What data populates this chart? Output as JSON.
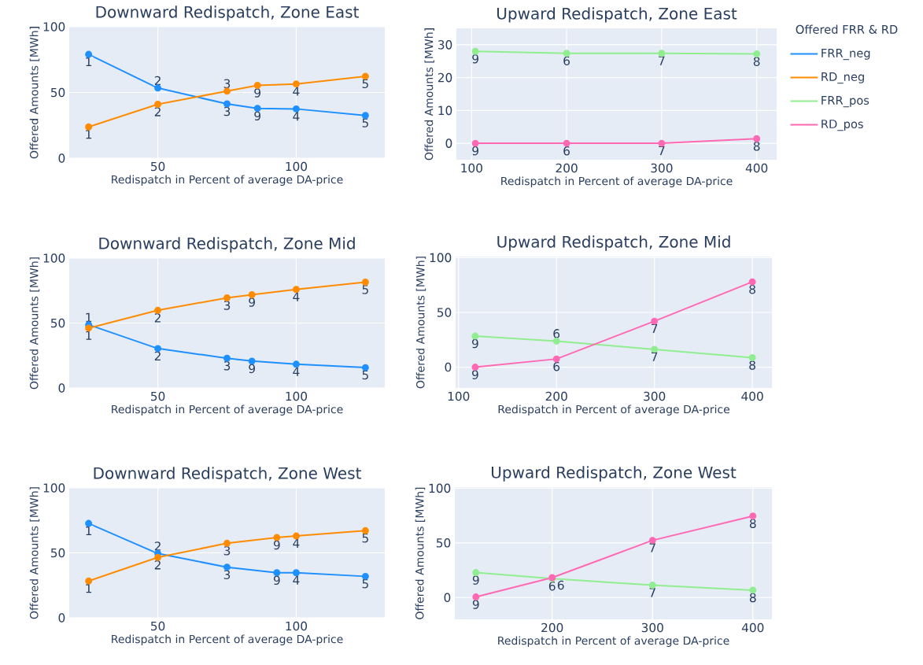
{
  "chart_data": [
    {
      "type": "line",
      "title": "Downward Redispatch, Zone East",
      "xlabel": "Redispatch in Percent of average DA-price",
      "ylabel": "Offered Amounts [MWh]",
      "xlim": [
        18,
        132
      ],
      "ylim": [
        0,
        100
      ],
      "xticks": [
        50,
        100
      ],
      "yticks": [
        0,
        50,
        100
      ],
      "grid": true,
      "marker": "circle",
      "x": [
        25,
        50,
        75,
        86,
        100,
        125
      ],
      "series": [
        {
          "name": "FRR_neg",
          "color": "#1e90ff",
          "values": [
            79,
            53.4,
            41.3,
            37.9,
            37.5,
            32.5
          ]
        },
        {
          "name": "RD_neg",
          "color": "#ff8c00",
          "values": [
            23.8,
            41,
            51,
            55.4,
            56.5,
            62.3
          ]
        }
      ],
      "annotations": [
        {
          "text": "1",
          "x": 25,
          "y": 79
        },
        {
          "text": "2",
          "x": 50,
          "y": 53.4
        },
        {
          "text": "3",
          "x": 75,
          "y": 41.3
        },
        {
          "text": "9",
          "x": 86,
          "y": 37.9
        },
        {
          "text": "4",
          "x": 100,
          "y": 37.5
        },
        {
          "text": "5",
          "x": 125,
          "y": 32.5
        },
        {
          "text": "1",
          "x": 25,
          "y": 23.8
        },
        {
          "text": "2",
          "x": 50,
          "y": 41
        },
        {
          "text": "3",
          "x": 75,
          "y": 51
        },
        {
          "text": "9",
          "x": 86,
          "y": 55.4
        },
        {
          "text": "4",
          "x": 100,
          "y": 56.5
        },
        {
          "text": "5",
          "x": 125,
          "y": 62.3
        }
      ]
    },
    {
      "type": "line",
      "title": "Upward Redispatch, Zone East",
      "xlabel": "Redispatch in Percent of average DA-price",
      "ylabel": "Offered Amounts [MWh]",
      "xlim": [
        84,
        421
      ],
      "ylim": [
        -5,
        35
      ],
      "xticks": [
        100,
        200,
        300,
        400
      ],
      "yticks": [
        0,
        10,
        20,
        30
      ],
      "grid": true,
      "marker": "circle",
      "legend": "right",
      "legend_title": "Offered FRR & RD",
      "x": [
        104,
        200,
        300,
        400
      ],
      "series": [
        {
          "name": "FRR_pos",
          "color": "#90ee90",
          "values": [
            28.0,
            27.4,
            27.4,
            27.2
          ]
        },
        {
          "name": "RD_pos",
          "color": "#ff69b4",
          "values": [
            0,
            0,
            0,
            1.4
          ]
        }
      ],
      "annotations": [
        {
          "text": "9",
          "x": 104,
          "y": 28.0
        },
        {
          "text": "6",
          "x": 200,
          "y": 27.4
        },
        {
          "text": "7",
          "x": 300,
          "y": 27.4
        },
        {
          "text": "8",
          "x": 400,
          "y": 27.2
        },
        {
          "text": "9",
          "x": 104,
          "y": 0
        },
        {
          "text": "6",
          "x": 200,
          "y": 0
        },
        {
          "text": "7",
          "x": 300,
          "y": 0
        },
        {
          "text": "8",
          "x": 400,
          "y": 1.4
        }
      ]
    },
    {
      "type": "line",
      "title": "Downward Redispatch, Zone Mid",
      "xlabel": "Redispatch in Percent of average DA-price",
      "ylabel": "Offered Amounts [MWh]",
      "xlim": [
        18,
        132
      ],
      "ylim": [
        0,
        100
      ],
      "xticks": [
        50,
        100
      ],
      "yticks": [
        0,
        50,
        100
      ],
      "grid": true,
      "marker": "circle",
      "x": [
        25,
        50,
        75,
        84,
        100,
        125
      ],
      "series": [
        {
          "color": "#1e90ff",
          "values": [
            48.7,
            30.4,
            22.9,
            20.7,
            18.3,
            15.7
          ]
        },
        {
          "color": "#ff8c00",
          "values": [
            46.1,
            59.8,
            69.4,
            71.8,
            75.9,
            81.5
          ]
        }
      ],
      "annotations": [
        {
          "text": "1",
          "x": 25,
          "y": 48.7
        },
        {
          "text": "2",
          "x": 50,
          "y": 30.4
        },
        {
          "text": "3",
          "x": 75,
          "y": 22.9
        },
        {
          "text": "9",
          "x": 84,
          "y": 20.7
        },
        {
          "text": "4",
          "x": 100,
          "y": 18.3
        },
        {
          "text": "5",
          "x": 125,
          "y": 15.7
        },
        {
          "text": "1",
          "x": 25,
          "y": 46.1
        },
        {
          "text": "2",
          "x": 50,
          "y": 59.8
        },
        {
          "text": "3",
          "x": 75,
          "y": 69.4
        },
        {
          "text": "9",
          "x": 84,
          "y": 71.8
        },
        {
          "text": "4",
          "x": 100,
          "y": 75.9
        },
        {
          "text": "5",
          "x": 125,
          "y": 81.5
        }
      ]
    },
    {
      "type": "line",
      "title": "Upward Redispatch, Zone Mid",
      "xlabel": "Redispatch in Percent of average DA-price",
      "ylabel": "Offered Amounts [MWh]",
      "xlim": [
        97,
        420
      ],
      "ylim": [
        -19,
        101
      ],
      "xticks": [
        100,
        200,
        300,
        400
      ],
      "yticks": [
        0,
        50,
        100
      ],
      "grid": true,
      "marker": "circle",
      "x": [
        117,
        200,
        300,
        400
      ],
      "series": [
        {
          "color": "#90ee90",
          "values": [
            28.4,
            23.8,
            16.3,
            8.7
          ]
        },
        {
          "color": "#ff69b4",
          "values": [
            0,
            7.5,
            42,
            77.9
          ]
        }
      ],
      "annotations": [
        {
          "text": "9",
          "x": 117,
          "y": 28.4
        },
        {
          "text": "6",
          "x": 200,
          "y": 23.8
        },
        {
          "text": "7",
          "x": 300,
          "y": 16.3
        },
        {
          "text": "8",
          "x": 400,
          "y": 8.7
        },
        {
          "text": "9",
          "x": 117,
          "y": 0
        },
        {
          "text": "6",
          "x": 200,
          "y": 7.5
        },
        {
          "text": "7",
          "x": 300,
          "y": 42
        },
        {
          "text": "8",
          "x": 400,
          "y": 77.9
        }
      ]
    },
    {
      "type": "line",
      "title": "Downward Redispatch, Zone West",
      "xlabel": "Redispatch in Percent of average DA-price",
      "ylabel": "Offered Amounts [MWh]",
      "xlim": [
        18,
        132
      ],
      "ylim": [
        0,
        100
      ],
      "xticks": [
        50,
        100
      ],
      "yticks": [
        0,
        50,
        100
      ],
      "grid": true,
      "marker": "circle",
      "x": [
        25,
        50,
        75,
        93,
        100,
        125
      ],
      "series": [
        {
          "color": "#1e90ff",
          "values": [
            72.7,
            49.5,
            39,
            34.7,
            34.7,
            31.9
          ]
        },
        {
          "color": "#ff8c00",
          "values": [
            28.3,
            46.5,
            57.4,
            61.8,
            63,
            67.1
          ]
        }
      ],
      "annotations": [
        {
          "text": "1",
          "x": 25,
          "y": 72.7
        },
        {
          "text": "2",
          "x": 50,
          "y": 49.5
        },
        {
          "text": "3",
          "x": 75,
          "y": 39
        },
        {
          "text": "9",
          "x": 93,
          "y": 34.7
        },
        {
          "text": "4",
          "x": 100,
          "y": 34.7
        },
        {
          "text": "5",
          "x": 125,
          "y": 31.9
        },
        {
          "text": "1",
          "x": 25,
          "y": 28.3
        },
        {
          "text": "2",
          "x": 50,
          "y": 46.5
        },
        {
          "text": "3",
          "x": 75,
          "y": 57.4
        },
        {
          "text": "9",
          "x": 93,
          "y": 61.8
        },
        {
          "text": "4",
          "x": 100,
          "y": 63
        },
        {
          "text": "5",
          "x": 125,
          "y": 67.1
        }
      ]
    },
    {
      "type": "line",
      "title": "Upward Redispatch, Zone West",
      "xlabel": "Redispatch in Percent of average DA-price",
      "ylabel": "Offered Amounts [MWh]",
      "xlim": [
        103,
        419
      ],
      "ylim": [
        -20,
        101
      ],
      "xticks": [
        200,
        300,
        400
      ],
      "yticks": [
        0,
        50,
        100
      ],
      "grid": true,
      "marker": "circle",
      "x": [
        124,
        200,
        300,
        400
      ],
      "series": [
        {
          "color": "#90ee90",
          "values": [
            22.8,
            17.3,
            11.3,
            6.7
          ]
        },
        {
          "color": "#ff69b4",
          "values": [
            0.5,
            18.2,
            52.3,
            74.6
          ]
        }
      ],
      "annotations": [
        {
          "text": "9",
          "x": 124,
          "y": 22.8
        },
        {
          "text": "6",
          "x": 200,
          "y": 17.3
        },
        {
          "text": "7",
          "x": 300,
          "y": 11.3
        },
        {
          "text": "8",
          "x": 400,
          "y": 6.7
        },
        {
          "text": "9",
          "x": 124,
          "y": 0.5
        },
        {
          "text": "6",
          "x": 200,
          "y": 18.2
        },
        {
          "text": "7",
          "x": 300,
          "y": 52.3
        },
        {
          "text": "8",
          "x": 400,
          "y": 74.6
        }
      ]
    }
  ]
}
